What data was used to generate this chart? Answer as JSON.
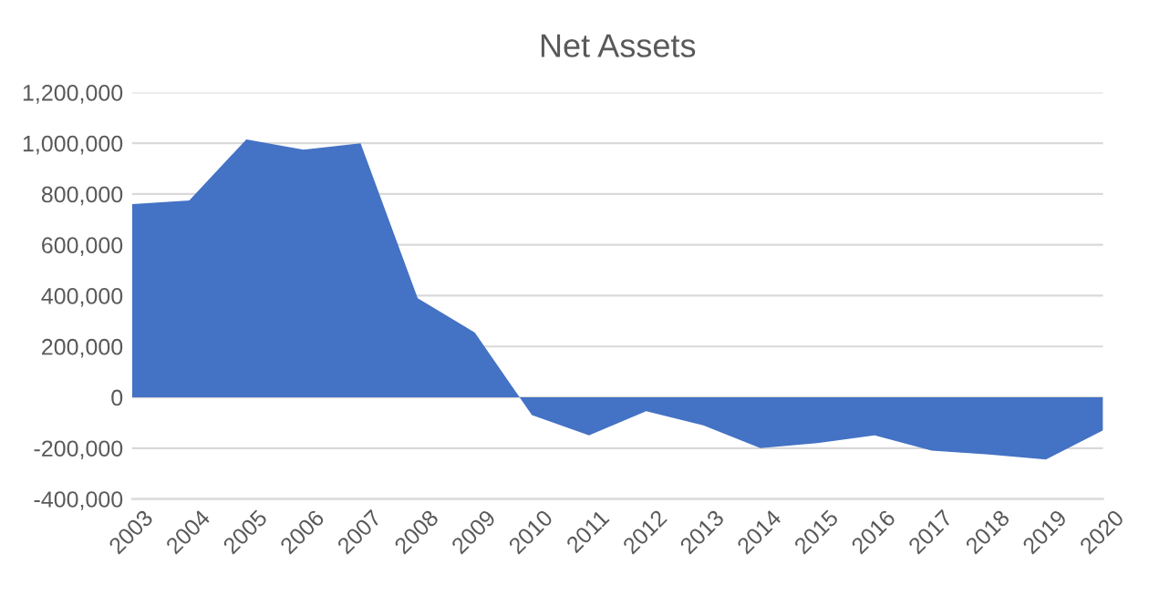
{
  "chart_data": {
    "type": "area",
    "title": "Net Assets",
    "categories": [
      "2003",
      "2004",
      "2005",
      "2006",
      "2007",
      "2008",
      "2009",
      "2010",
      "2011",
      "2012",
      "2013",
      "2014",
      "2015",
      "2016",
      "2017",
      "2018",
      "2019",
      "2020"
    ],
    "series": [
      {
        "color": "#4472c4",
        "values": [
          760000,
          775000,
          1015000,
          975000,
          1000000,
          390000,
          255000,
          -70000,
          -150000,
          -55000,
          -110000,
          -200000,
          -180000,
          -150000,
          -210000,
          -225000,
          -245000,
          -130000
        ]
      }
    ],
    "ylim": [
      -400000,
      1200000
    ],
    "yticks": [
      {
        "value": -400000,
        "label": "-400,000"
      },
      {
        "value": -200000,
        "label": "-200,000"
      },
      {
        "value": 0,
        "label": "0"
      },
      {
        "value": 200000,
        "label": "200,000"
      },
      {
        "value": 400000,
        "label": "400,000"
      },
      {
        "value": 600000,
        "label": "600,000"
      },
      {
        "value": 800000,
        "label": "800,000"
      },
      {
        "value": 1000000,
        "label": "1,000,000"
      },
      {
        "value": 1200000,
        "label": "1,200,000"
      }
    ],
    "grid": "y"
  }
}
